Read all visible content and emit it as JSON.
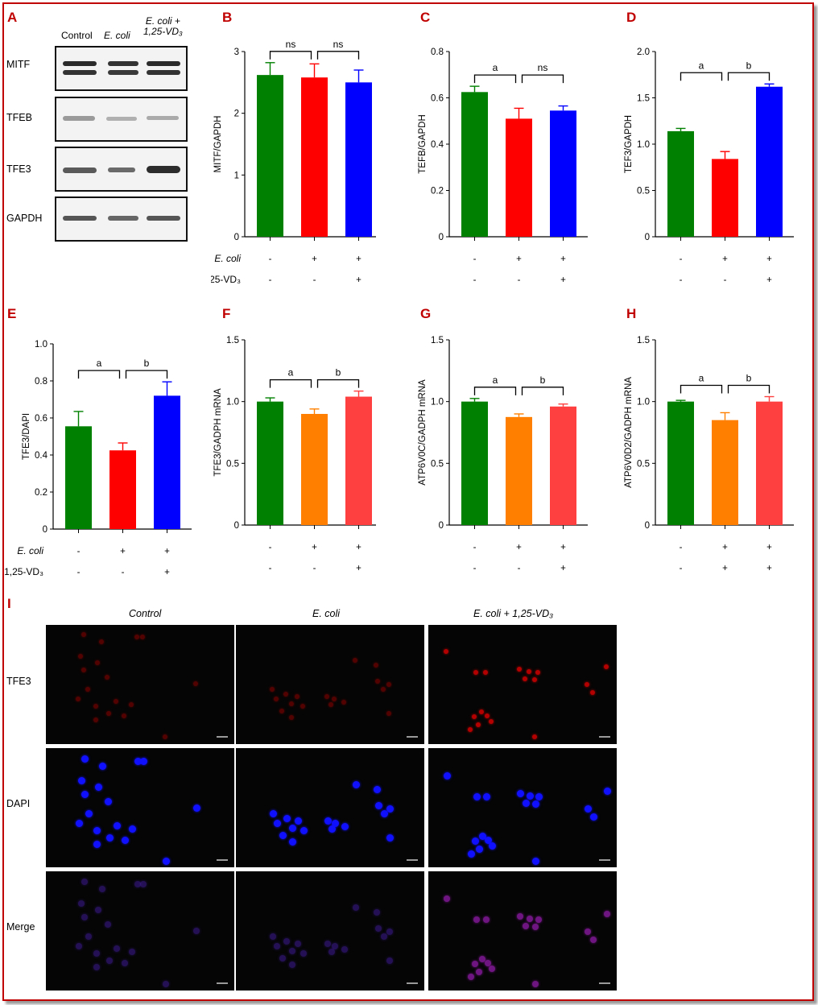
{
  "panels": [
    "A",
    "B",
    "C",
    "D",
    "E",
    "F",
    "G",
    "H",
    "I"
  ],
  "blot": {
    "headers": [
      {
        "plain": "Control",
        "italic": ""
      },
      {
        "plain": "",
        "italic": "E. coli"
      },
      {
        "plain": "",
        "italic": "E. coli +\n1,25-VD₃"
      }
    ],
    "rows": [
      "MITF",
      "TFEB",
      "TFE3",
      "GAPDH"
    ]
  },
  "row_labels": {
    "ecoli": "E. coli",
    "vd3": "1,25-VD₃"
  },
  "chart_data": [
    {
      "panel": "B",
      "type": "bar",
      "ylabel": "MITF/GAPDH",
      "ylim": [
        0,
        3
      ],
      "yticks": [
        "0",
        "1",
        "2",
        "3"
      ],
      "values": [
        2.62,
        2.58,
        2.5
      ],
      "errors": [
        0.2,
        0.22,
        0.2
      ],
      "colors": [
        "#008000",
        "#ff0000",
        "#0000ff"
      ],
      "sig": [
        "ns",
        "ns"
      ],
      "show_row_titles": true,
      "ecoli_signs": [
        "-",
        "+",
        "+"
      ],
      "vd3_signs": [
        "-",
        "-",
        "+"
      ]
    },
    {
      "panel": "C",
      "type": "bar",
      "ylabel": "TEFB/GAPDH",
      "ylim": [
        0,
        0.8
      ],
      "yticks": [
        "0",
        "0.2",
        "0.4",
        "0.6",
        "0.8"
      ],
      "values": [
        0.625,
        0.51,
        0.545
      ],
      "errors": [
        0.025,
        0.045,
        0.02
      ],
      "colors": [
        "#008000",
        "#ff0000",
        "#0000ff"
      ],
      "sig": [
        "a",
        "ns"
      ],
      "show_row_titles": false,
      "ecoli_signs": [
        "-",
        "+",
        "+"
      ],
      "vd3_signs": [
        "-",
        "-",
        "+"
      ]
    },
    {
      "panel": "D",
      "type": "bar",
      "ylabel": "TEF3/GAPDH",
      "ylim": [
        0,
        2
      ],
      "yticks": [
        "0",
        "0.5",
        "1.0",
        "1.5",
        "2.0"
      ],
      "values": [
        1.14,
        0.84,
        1.62
      ],
      "errors": [
        0.03,
        0.08,
        0.03
      ],
      "colors": [
        "#008000",
        "#ff0000",
        "#0000ff"
      ],
      "sig": [
        "a",
        "b"
      ],
      "show_row_titles": false,
      "ecoli_signs": [
        "-",
        "+",
        "+"
      ],
      "vd3_signs": [
        "-",
        "-",
        "+"
      ]
    },
    {
      "panel": "E",
      "type": "bar",
      "ylabel": "TFE3/DAPI",
      "ylim": [
        0,
        1
      ],
      "yticks": [
        "0",
        "0.2",
        "0.4",
        "0.6",
        "0.8",
        "1.0"
      ],
      "values": [
        0.555,
        0.425,
        0.72
      ],
      "errors": [
        0.08,
        0.04,
        0.075
      ],
      "colors": [
        "#008000",
        "#ff0000",
        "#0000ff"
      ],
      "sig": [
        "a",
        "b"
      ],
      "show_row_titles": true,
      "ecoli_signs": [
        "-",
        "+",
        "+"
      ],
      "vd3_signs": [
        "-",
        "-",
        "+"
      ]
    },
    {
      "panel": "F",
      "type": "bar",
      "ylabel": "TFE3/GADPH mRNA",
      "ylim": [
        0,
        1.5
      ],
      "yticks": [
        "0",
        "0.5",
        "1.0",
        "1.5"
      ],
      "values": [
        1.0,
        0.9,
        1.04
      ],
      "errors": [
        0.03,
        0.04,
        0.045
      ],
      "colors": [
        "#008000",
        "#ff8000",
        "#ff4040"
      ],
      "sig": [
        "a",
        "b"
      ],
      "show_row_titles": false,
      "ecoli_signs": [
        "-",
        "+",
        "+"
      ],
      "vd3_signs": [
        "-",
        "-",
        "+"
      ]
    },
    {
      "panel": "G",
      "type": "bar",
      "ylabel": "ATP6V0C/GADPH mRNA",
      "ylim": [
        0,
        1.5
      ],
      "yticks": [
        "0",
        "0.5",
        "1.0",
        "1.5"
      ],
      "values": [
        1.0,
        0.875,
        0.96
      ],
      "errors": [
        0.025,
        0.025,
        0.02
      ],
      "colors": [
        "#008000",
        "#ff8000",
        "#ff4040"
      ],
      "sig": [
        "a",
        "b"
      ],
      "show_row_titles": false,
      "ecoli_signs": [
        "-",
        "+",
        "+"
      ],
      "vd3_signs": [
        "-",
        "-",
        "+"
      ]
    },
    {
      "panel": "H",
      "type": "bar",
      "ylabel": "ATP6V0D2/GADPH mRNA",
      "ylim": [
        0,
        1.5
      ],
      "yticks": [
        "0",
        "0.5",
        "1.0",
        "1.5"
      ],
      "values": [
        1.0,
        0.85,
        1.0
      ],
      "errors": [
        0.01,
        0.06,
        0.04
      ],
      "colors": [
        "#008000",
        "#ff8000",
        "#ff4040"
      ],
      "sig": [
        "a",
        "b"
      ],
      "show_row_titles": false,
      "ecoli_signs": [
        "-",
        "+",
        "+"
      ],
      "vd3_signs": [
        "-",
        "+",
        "+"
      ]
    }
  ],
  "microscopy": {
    "columns": [
      "Control",
      "E. coli",
      "E. coli + 1,25-VD₃"
    ],
    "rows": [
      "TFE3",
      "DAPI",
      "Merge"
    ],
    "colors": {
      "TFE3": "#b30000",
      "DAPI": "#1010ff",
      "Merge": "#5a1a8a"
    }
  }
}
